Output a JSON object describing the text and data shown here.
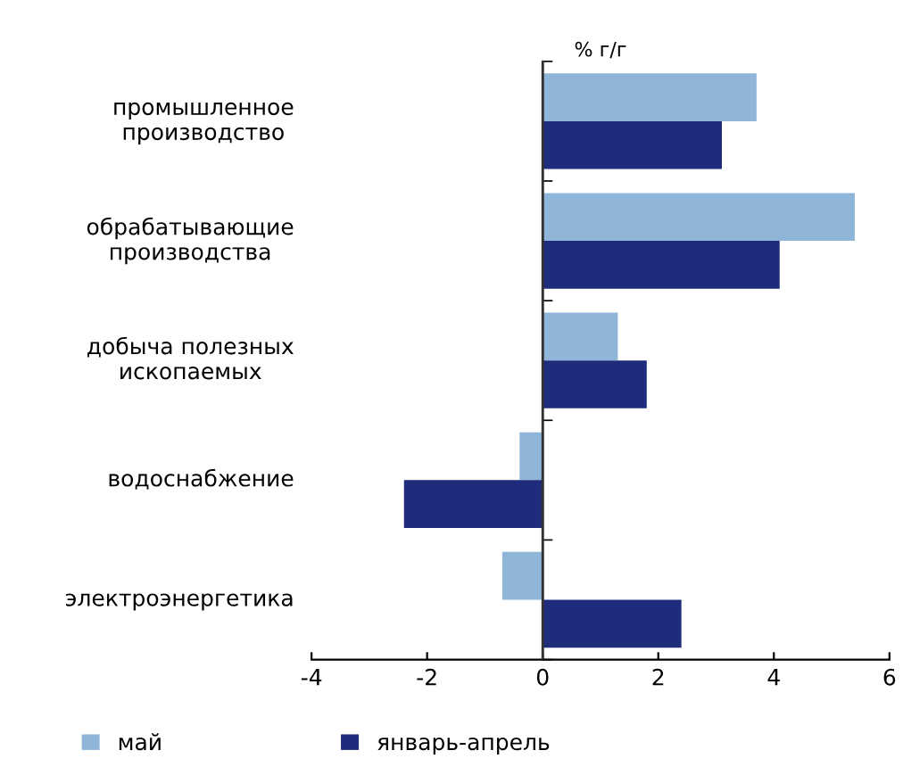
{
  "chart_data": {
    "type": "bar",
    "orientation": "horizontal",
    "title": "% г/г",
    "categories": [
      "промышленное\nпроизводство",
      "обрабатывающие\nпроизводства",
      "добыча полезных\nископаемых",
      "водоснабжение",
      "электроэнергетика"
    ],
    "series": [
      {
        "name": "май",
        "color": "#8fb6d8",
        "values": [
          3.7,
          5.4,
          1.3,
          -0.4,
          -0.7
        ]
      },
      {
        "name": "январь-апрель",
        "color": "#1f2b7b",
        "values": [
          3.1,
          4.1,
          1.8,
          -2.4,
          2.4
        ]
      }
    ],
    "xlim": [
      -4,
      6
    ],
    "xticks": [
      -4,
      -2,
      0,
      2,
      4,
      6
    ],
    "grid": false,
    "ref_lines": [
      {
        "axis": "x",
        "value": 0,
        "color": "#333333"
      }
    ],
    "legend": "bottom"
  }
}
